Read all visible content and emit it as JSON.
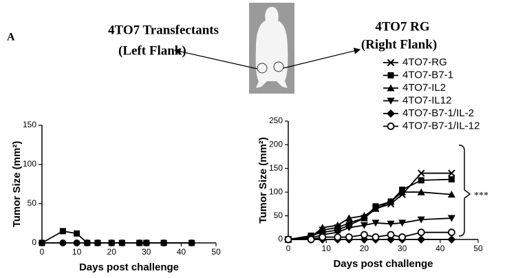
{
  "figure_label": "A",
  "captions": {
    "left_title": "4TO7 Transfectants",
    "left_subtitle": "(Left Flank)",
    "right_title": "4TO7 RG",
    "right_subtitle": "(Right Flank)"
  },
  "chart_data": [
    {
      "type": "line",
      "x": [
        0,
        6,
        10,
        13,
        16,
        20,
        23,
        28,
        30,
        35,
        43
      ],
      "xlim": [
        0,
        50
      ],
      "xticks": [
        0,
        10,
        20,
        30,
        40,
        50
      ],
      "ylim": [
        0,
        150
      ],
      "yticks": [
        0,
        50,
        100,
        150
      ],
      "xlabel": "Days post challenge",
      "ylabel": "Tumor Size (mm²)",
      "series": [
        {
          "marker": "square",
          "color": "#000000",
          "values": [
            0,
            15,
            12,
            0,
            0,
            0,
            0,
            0,
            0,
            0,
            0
          ]
        },
        {
          "marker": "circle",
          "color": "#000000",
          "values": [
            0,
            0,
            0,
            0,
            0,
            0,
            0,
            0,
            0,
            0,
            0
          ]
        }
      ]
    },
    {
      "type": "line",
      "x": [
        0,
        6,
        9,
        13,
        16,
        20,
        23,
        27,
        30,
        35,
        43
      ],
      "xlim": [
        0,
        50
      ],
      "xticks": [
        0,
        10,
        20,
        30,
        40,
        50
      ],
      "ylim": [
        0,
        250
      ],
      "yticks": [
        0,
        50,
        100,
        150,
        200,
        250
      ],
      "xlabel": "Days post challenge",
      "ylabel": "Tumor Size (mm²)",
      "legend": "top right",
      "annotation": "***",
      "series": [
        {
          "name": "4TO7-RG",
          "marker": "x",
          "color": "#000000",
          "values": [
            0,
            5,
            20,
            25,
            35,
            45,
            65,
            75,
            95,
            140,
            140
          ]
        },
        {
          "name": "4TO7-B7-1",
          "marker": "square",
          "color": "#000000",
          "values": [
            0,
            8,
            15,
            20,
            30,
            45,
            70,
            80,
            105,
            125,
            127
          ]
        },
        {
          "name": "4TO7-IL2",
          "marker": "triangle",
          "color": "#000000",
          "values": [
            0,
            5,
            25,
            30,
            45,
            50,
            65,
            80,
            100,
            100,
            95
          ]
        },
        {
          "name": "4TO7-IL12",
          "marker": "triangle-down",
          "color": "#000000",
          "values": [
            0,
            3,
            10,
            15,
            25,
            30,
            35,
            33,
            35,
            42,
            45
          ]
        },
        {
          "name": "4TO7-B7-1/IL-2",
          "marker": "diamond",
          "color": "#000000",
          "values": [
            0,
            0,
            0,
            0,
            0,
            0,
            0,
            0,
            0,
            0,
            0
          ]
        },
        {
          "name": "4TO7-B7-1/IL-12",
          "marker": "circle-open",
          "color": "#000000",
          "values": [
            0,
            0,
            5,
            5,
            5,
            10,
            5,
            10,
            5,
            15,
            15
          ]
        }
      ]
    }
  ]
}
